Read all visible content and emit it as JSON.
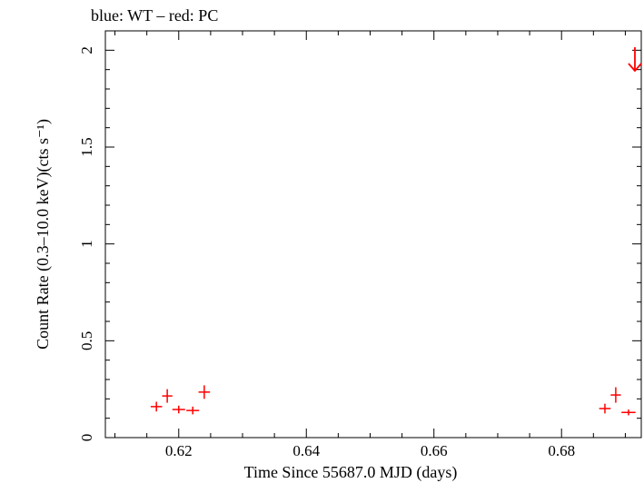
{
  "chart_data": {
    "type": "scatter",
    "title": "blue: WT – red: PC",
    "xlabel": "Time Since 55687.0 MJD (days)",
    "ylabel": "Count Rate (0.3–10.0 keV)(cts s⁻¹)",
    "xlim": [
      0.6085,
      0.6925
    ],
    "ylim": [
      0,
      2.1
    ],
    "x_ticks": [
      0.62,
      0.64,
      0.66,
      0.68
    ],
    "x_tick_labels": [
      "0.62",
      "0.64",
      "0.66",
      "0.68"
    ],
    "y_ticks": [
      0,
      0.5,
      1,
      1.5,
      2
    ],
    "y_tick_labels": [
      "0",
      "0.5",
      "1",
      "1.5",
      "2"
    ],
    "grid": false,
    "series": [
      {
        "color": "#ff0000",
        "points": [
          {
            "x": 0.6165,
            "xerr": 0.0009,
            "y": 0.16,
            "yerr": 0.025
          },
          {
            "x": 0.6182,
            "xerr": 0.0008,
            "y": 0.215,
            "yerr": 0.035
          },
          {
            "x": 0.62,
            "xerr": 0.001,
            "y": 0.145,
            "yerr": 0.02
          },
          {
            "x": 0.6222,
            "xerr": 0.001,
            "y": 0.14,
            "yerr": 0.02
          },
          {
            "x": 0.624,
            "xerr": 0.0009,
            "y": 0.235,
            "yerr": 0.035
          },
          {
            "x": 0.6868,
            "xerr": 0.0009,
            "y": 0.15,
            "yerr": 0.025
          },
          {
            "x": 0.6885,
            "xerr": 0.0008,
            "y": 0.22,
            "yerr": 0.04
          },
          {
            "x": 0.6905,
            "xerr": 0.0011,
            "y": 0.13,
            "yerr": 0.015
          }
        ],
        "upper_limits": [
          {
            "x": 0.6915,
            "y": 1.95
          }
        ]
      }
    ]
  }
}
